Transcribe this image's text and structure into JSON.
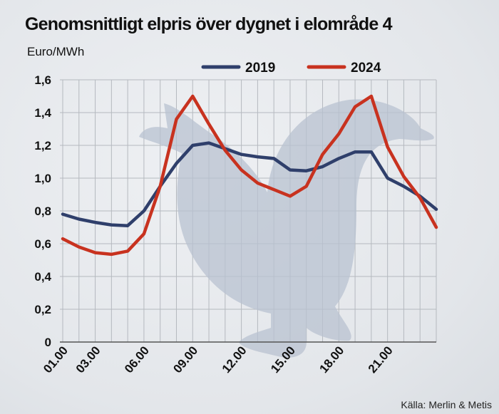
{
  "chart_data": {
    "type": "line",
    "title": "Genomsnittligt elpris över dygnet i elområde 4",
    "ylabel": "Euro/MWh",
    "xlabel": "",
    "source": "Källa: Merlin & Metis",
    "x": [
      1,
      2,
      3,
      4,
      5,
      6,
      7,
      8,
      9,
      10,
      11,
      12,
      13,
      14,
      15,
      16,
      17,
      18,
      19,
      20,
      21,
      22,
      23,
      24
    ],
    "x_tick_values": [
      1,
      3,
      6,
      9,
      12,
      15,
      18,
      21
    ],
    "x_tick_labels": [
      "01.00",
      "03.00",
      "06.00",
      "09.00",
      "12.00",
      "15.00",
      "18.00",
      "21.00"
    ],
    "ylim": [
      0,
      1.6
    ],
    "y_ticks": [
      0,
      0.2,
      0.4,
      0.6,
      0.8,
      1.0,
      1.2,
      1.4,
      1.6
    ],
    "y_tick_labels": [
      "0",
      "0,2",
      "0,4",
      "0,6",
      "0,8",
      "1,0",
      "1,2",
      "1,4",
      "1,6"
    ],
    "grid": true,
    "legend_position": "top",
    "series": [
      {
        "name": "2019",
        "color": "#2f3f6b",
        "values": [
          0.78,
          0.75,
          0.73,
          0.715,
          0.71,
          0.8,
          0.95,
          1.09,
          1.2,
          1.215,
          1.18,
          1.145,
          1.13,
          1.12,
          1.05,
          1.045,
          1.07,
          1.12,
          1.16,
          1.16,
          1.0,
          0.95,
          0.89,
          0.81
        ]
      },
      {
        "name": "2024",
        "color": "#c8321f",
        "values": [
          0.63,
          0.58,
          0.545,
          0.535,
          0.555,
          0.66,
          0.95,
          1.36,
          1.5,
          1.33,
          1.17,
          1.05,
          0.97,
          0.93,
          0.89,
          0.95,
          1.145,
          1.27,
          1.435,
          1.5,
          1.19,
          1.01,
          0.88,
          0.7
        ]
      }
    ]
  }
}
